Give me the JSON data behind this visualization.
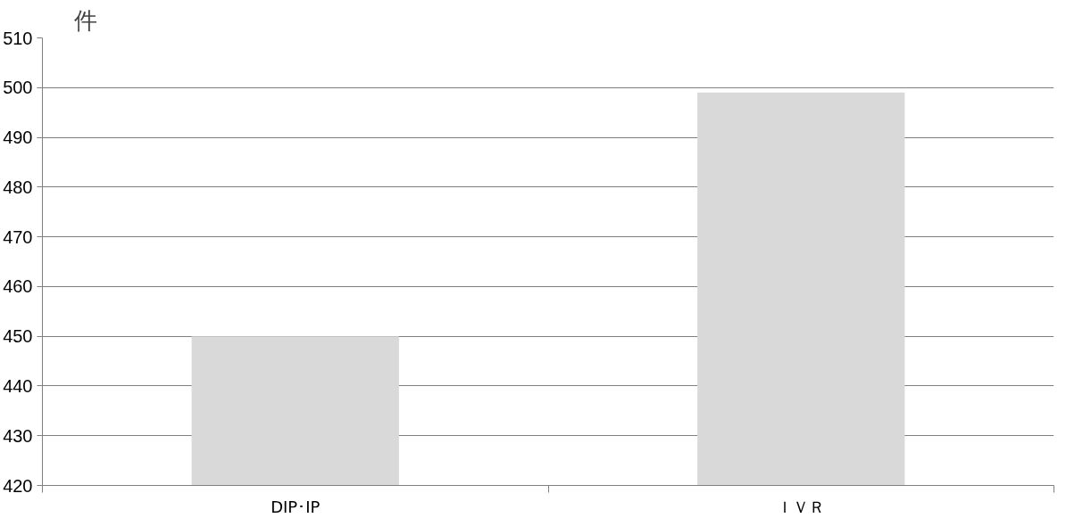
{
  "chart_data": {
    "type": "bar",
    "ylabel": "件",
    "categories": [
      "DIP･IP",
      "ＩＶＲ"
    ],
    "values": [
      450,
      499
    ],
    "color": "#d9d9d9",
    "ylim": [
      420,
      510
    ],
    "yticks": [
      420,
      430,
      440,
      450,
      460,
      470,
      480,
      490,
      500,
      510
    ],
    "grid": "y"
  }
}
